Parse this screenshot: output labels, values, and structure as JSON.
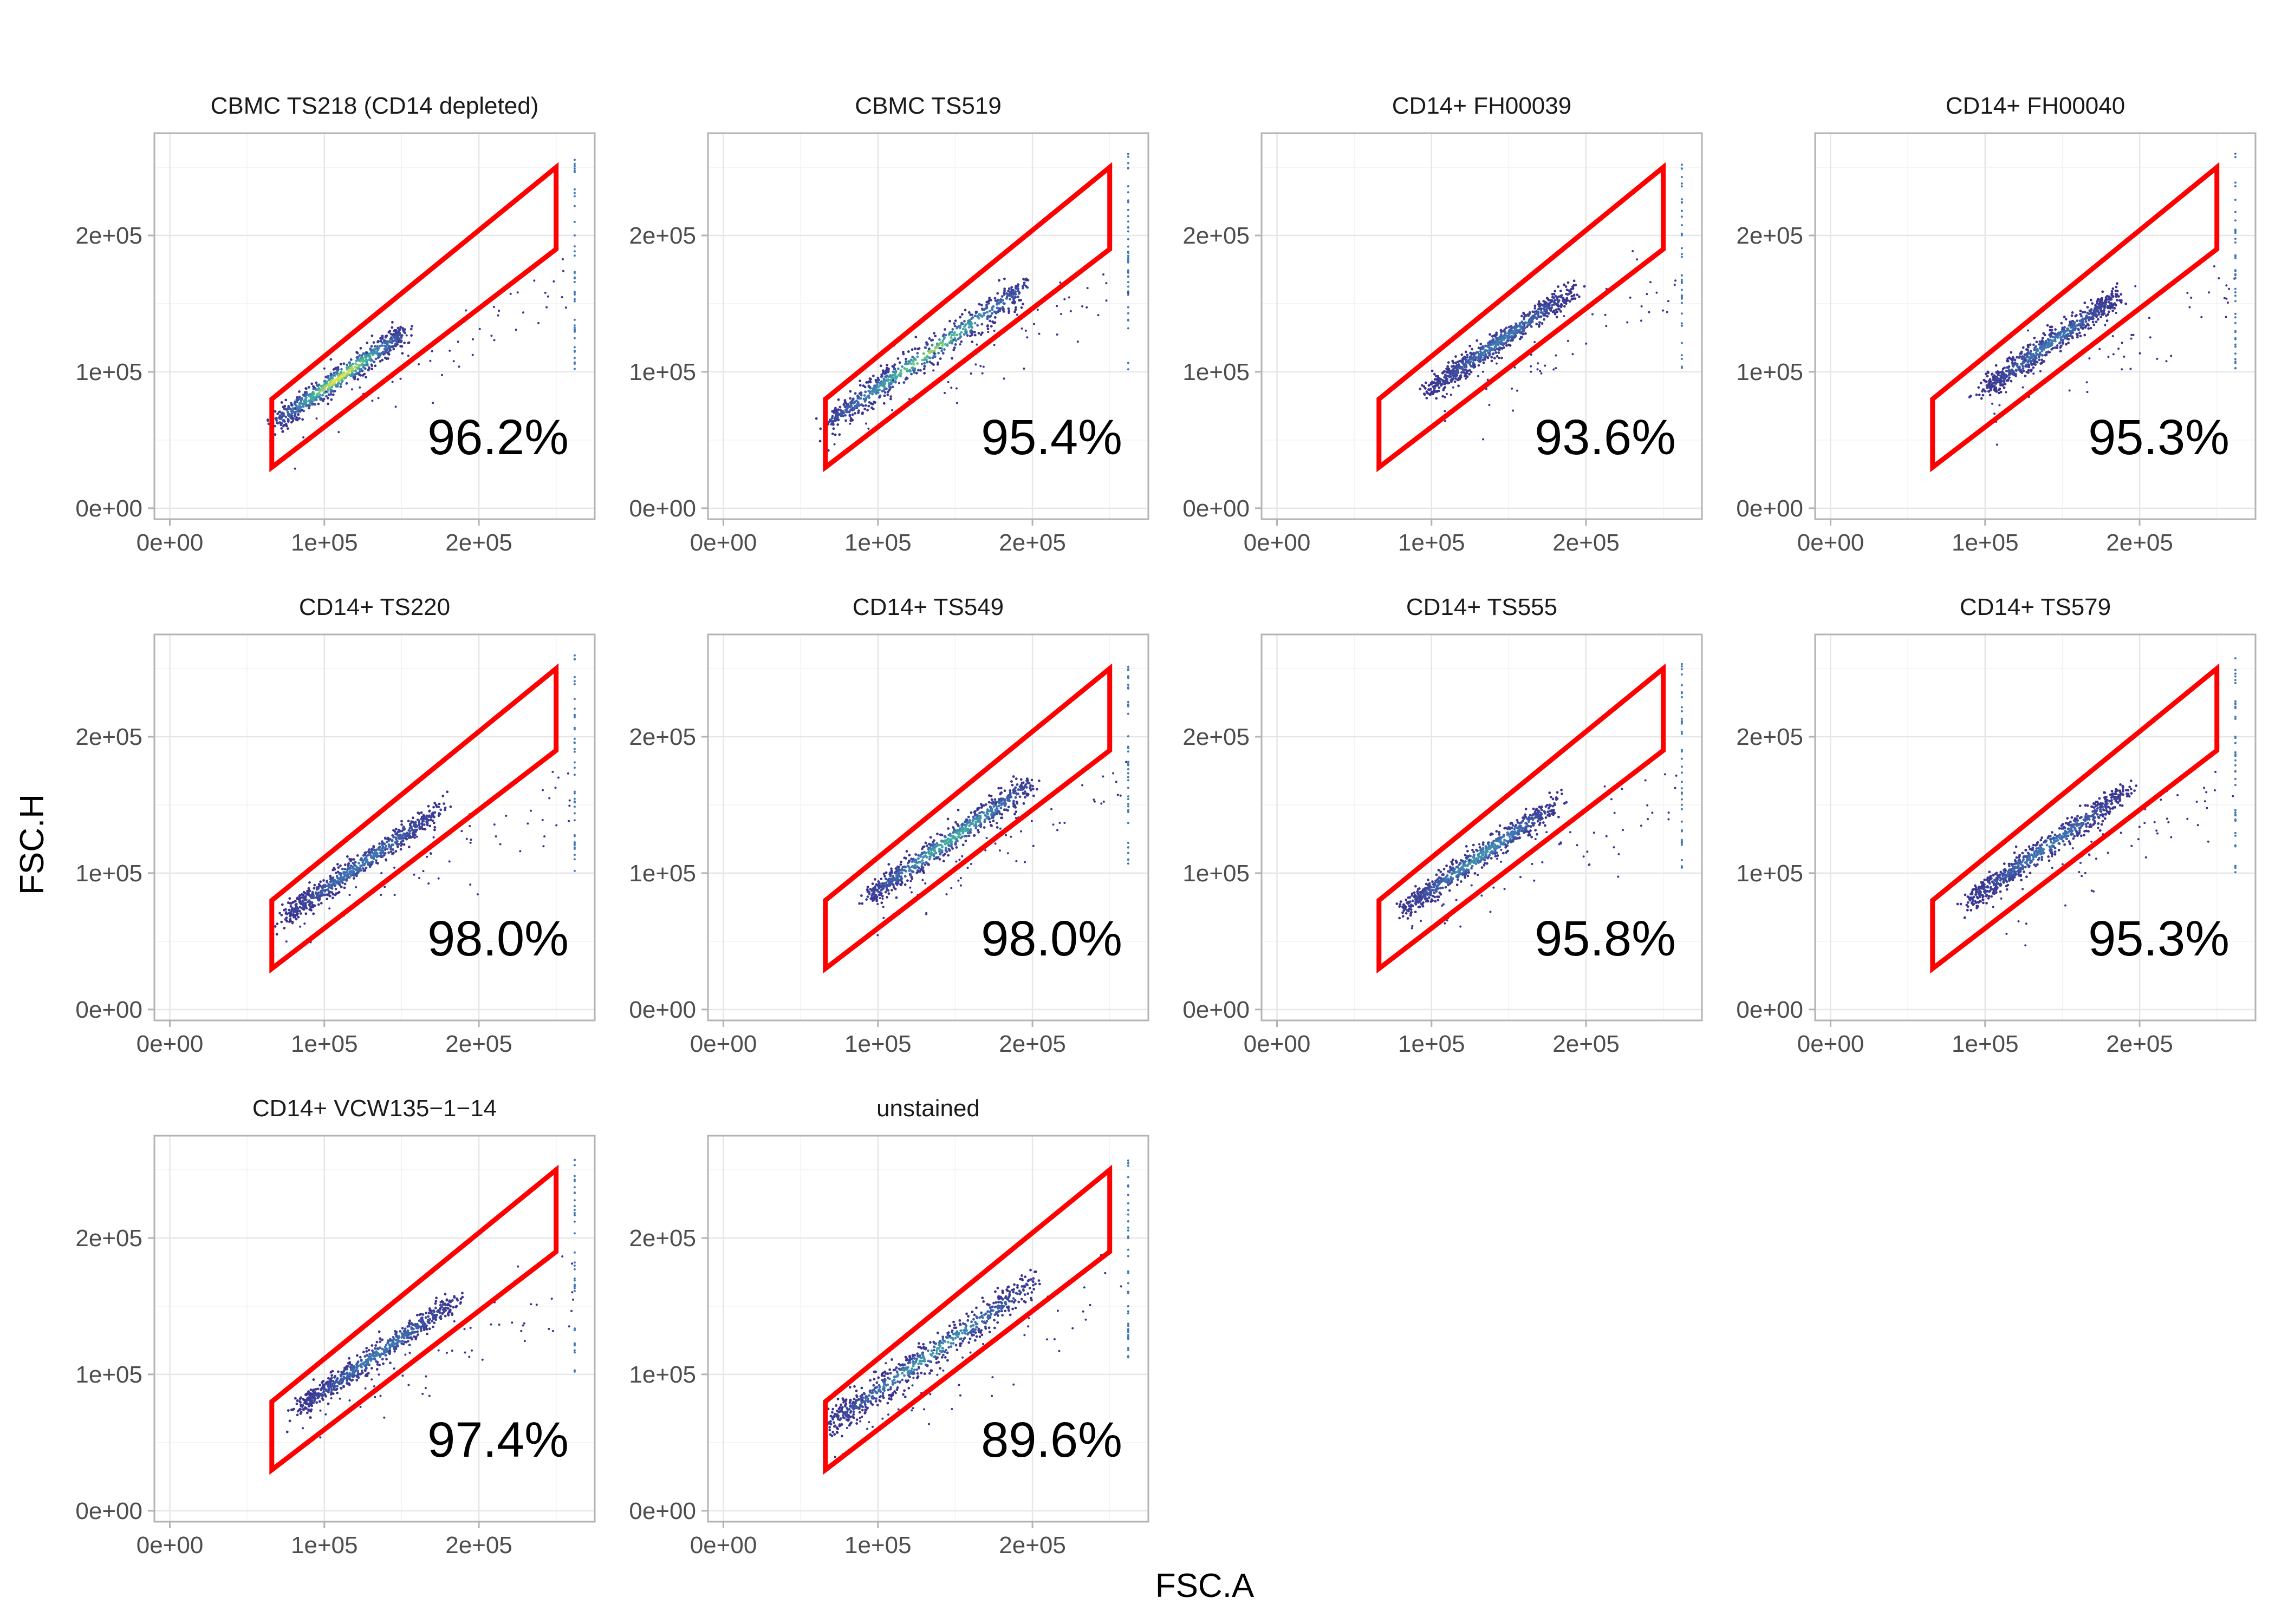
{
  "colors": {
    "gate": "#ff0000",
    "density_low": "#3b2f8f",
    "density_mid1": "#3f78b5",
    "density_mid2": "#3fb59a",
    "density_high": "#f0e442"
  },
  "chart_data": {
    "type": "scatter",
    "subtype": "faceted-density-scatter",
    "xlabel": "FSC.A",
    "ylabel": "FSC.H",
    "xlim": [
      -10000,
      275000
    ],
    "ylim": [
      -8000,
      275000
    ],
    "x_ticks": [
      0,
      100000,
      200000
    ],
    "x_tick_labels": [
      "0e+00",
      "1e+05",
      "2e+05"
    ],
    "y_ticks": [
      0,
      100000,
      200000
    ],
    "y_tick_labels": [
      "0e+00",
      "1e+05",
      "2e+05"
    ],
    "grid": true,
    "legend": "none",
    "gate_polygon": [
      [
        66000,
        30000
      ],
      [
        66000,
        80000
      ],
      [
        250000,
        250000
      ],
      [
        250000,
        190000
      ]
    ],
    "panels": [
      {
        "title": "CBMC TS218 (CD14 depleted)",
        "percent": "96.2%",
        "density_peak": 1.0,
        "cloud": {
          "x_start": 70000,
          "x_end": 150000,
          "spread": 0.85
        }
      },
      {
        "title": "CBMC TS519",
        "percent": "95.4%",
        "density_peak": 0.85,
        "cloud": {
          "x_start": 70000,
          "x_end": 195000,
          "spread": 1.0
        }
      },
      {
        "title": "CD14+ FH00039",
        "percent": "93.6%",
        "density_peak": 0.35,
        "cloud": {
          "x_start": 100000,
          "x_end": 190000,
          "spread": 0.8
        }
      },
      {
        "title": "CD14+ FH00040",
        "percent": "95.3%",
        "density_peak": 0.35,
        "cloud": {
          "x_start": 100000,
          "x_end": 185000,
          "spread": 0.8
        }
      },
      {
        "title": "CD14+ TS220",
        "percent": "98.0%",
        "density_peak": 0.35,
        "cloud": {
          "x_start": 75000,
          "x_end": 175000,
          "spread": 0.8
        }
      },
      {
        "title": "CD14+ TS549",
        "percent": "98.0%",
        "density_peak": 0.65,
        "cloud": {
          "x_start": 95000,
          "x_end": 200000,
          "spread": 0.9
        }
      },
      {
        "title": "CD14+ TS555",
        "percent": "95.8%",
        "density_peak": 0.5,
        "cloud": {
          "x_start": 85000,
          "x_end": 180000,
          "spread": 0.8
        }
      },
      {
        "title": "CD14+ TS579",
        "percent": "95.3%",
        "density_peak": 0.35,
        "cloud": {
          "x_start": 90000,
          "x_end": 190000,
          "spread": 0.8
        }
      },
      {
        "title": "CD14+ VCW135−1−14",
        "percent": "97.4%",
        "density_peak": 0.35,
        "cloud": {
          "x_start": 85000,
          "x_end": 185000,
          "spread": 0.75
        }
      },
      {
        "title": "unstained",
        "percent": "89.6%",
        "density_peak": 0.55,
        "cloud": {
          "x_start": 70000,
          "x_end": 200000,
          "spread": 1.1
        }
      }
    ]
  }
}
